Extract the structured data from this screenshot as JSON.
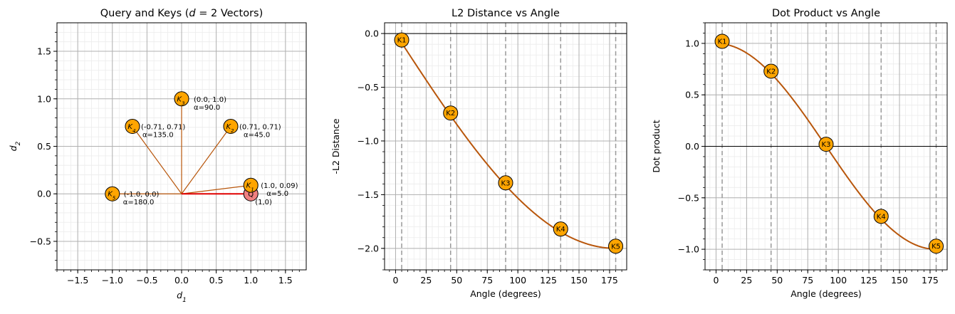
{
  "colors": {
    "key_fill": "#FFA500",
    "query_fill": "#F08080",
    "vector_line": "#B8560B",
    "query_line": "#E00000",
    "curve": "#B8560B",
    "vline": "#999999"
  },
  "chart_data": [
    {
      "type": "scatter",
      "title": "Query and Keys (d = 2 Vectors)",
      "title_main": "Query and Keys (",
      "title_math": "d",
      "title_rest": " = 2 Vectors)",
      "xlabel_base": "d",
      "xlabel_sub": "1",
      "ylabel_base": "d",
      "ylabel_sub": "2",
      "xlim": [
        -1.8,
        1.8
      ],
      "ylim": [
        -0.8,
        1.8
      ],
      "xticks": [
        "−1.5",
        "−1.0",
        "−0.5",
        "0.0",
        "0.5",
        "1.0",
        "1.5"
      ],
      "xtick_values": [
        -1.5,
        -1.0,
        -0.5,
        0.0,
        0.5,
        1.0,
        1.5
      ],
      "yticks": [
        "−0.5",
        "0.0",
        "0.5",
        "1.0",
        "1.5"
      ],
      "ytick_values": [
        -0.5,
        0.0,
        0.5,
        1.0,
        1.5
      ],
      "grid": true,
      "keys": [
        {
          "label_base": "K",
          "label_sub": "1",
          "x": 1.0,
          "y": 0.09,
          "coord": "(1.0, 0.09)",
          "alpha": "α=5.0"
        },
        {
          "label_base": "K",
          "label_sub": "2",
          "x": 0.71,
          "y": 0.71,
          "coord": "(0.71, 0.71)",
          "alpha": "α=45.0"
        },
        {
          "label_base": "K",
          "label_sub": "3",
          "x": 0.0,
          "y": 1.0,
          "coord": "(0.0, 1.0)",
          "alpha": "α=90.0"
        },
        {
          "label_base": "K",
          "label_sub": "4",
          "x": -0.71,
          "y": 0.71,
          "coord": "(-0.71, 0.71)",
          "alpha": "α=135.0"
        },
        {
          "label_base": "K",
          "label_sub": "5",
          "x": -1.0,
          "y": 0.0,
          "coord": "(-1.0, 0.0)",
          "alpha": "α=180.0"
        }
      ],
      "query": {
        "label": "Q",
        "x": 1.0,
        "y": 0.0,
        "coord": "(1,0)"
      }
    },
    {
      "type": "line",
      "title": "L2 Distance vs Angle",
      "xlabel": "Angle (degrees)",
      "ylabel": "-L2 Distance",
      "xlim": [
        -9,
        189
      ],
      "ylim": [
        -2.2,
        0.1
      ],
      "xticks": [
        "0",
        "25",
        "50",
        "75",
        "100",
        "125",
        "150",
        "175"
      ],
      "xtick_values": [
        0,
        25,
        50,
        75,
        100,
        125,
        150,
        175
      ],
      "yticks": [
        "−2.0",
        "−1.5",
        "−1.0",
        "−0.5",
        "0.0"
      ],
      "ytick_values": [
        -2.0,
        -1.5,
        -1.0,
        -0.5,
        0.0
      ],
      "grid": true,
      "series": [
        {
          "values_formula": "-2*sin(angle/2)"
        }
      ],
      "points": [
        {
          "label": "K1",
          "angle": 5,
          "value": -0.06
        },
        {
          "label": "K2",
          "angle": 45,
          "value": -0.74
        },
        {
          "label": "K3",
          "angle": 90,
          "value": -1.39
        },
        {
          "label": "K4",
          "angle": 135,
          "value": -1.82
        },
        {
          "label": "K5",
          "angle": 180,
          "value": -1.98
        }
      ],
      "vlines": [
        5,
        45,
        90,
        135,
        180
      ],
      "hline": 0
    },
    {
      "type": "line",
      "title": "Dot Product vs Angle",
      "xlabel": "Angle (degrees)",
      "ylabel": "Dot product",
      "xlim": [
        -9,
        189
      ],
      "ylim": [
        -1.2,
        1.2
      ],
      "xticks": [
        "0",
        "25",
        "50",
        "75",
        "100",
        "125",
        "150",
        "175"
      ],
      "xtick_values": [
        0,
        25,
        50,
        75,
        100,
        125,
        150,
        175
      ],
      "yticks": [
        "−1.0",
        "−0.5",
        "0.0",
        "0.5",
        "1.0"
      ],
      "ytick_values": [
        -1.0,
        -0.5,
        0.0,
        0.5,
        1.0
      ],
      "grid": true,
      "series": [
        {
          "values_formula": "cos(angle)"
        }
      ],
      "points": [
        {
          "label": "K1",
          "angle": 5,
          "value": 1.02
        },
        {
          "label": "K2",
          "angle": 45,
          "value": 0.73
        },
        {
          "label": "K3",
          "angle": 90,
          "value": 0.02
        },
        {
          "label": "K4",
          "angle": 135,
          "value": -0.68
        },
        {
          "label": "K5",
          "angle": 180,
          "value": -0.97
        }
      ],
      "vlines": [
        5,
        45,
        90,
        135,
        180
      ],
      "hline": 0
    }
  ]
}
